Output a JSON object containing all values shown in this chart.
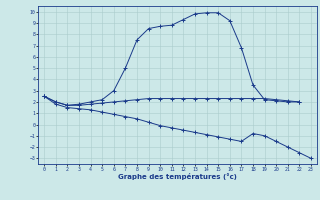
{
  "xlabel": "Graphe des températures (°c)",
  "x_ticks": [
    0,
    1,
    2,
    3,
    4,
    5,
    6,
    7,
    8,
    9,
    10,
    11,
    12,
    13,
    14,
    15,
    16,
    17,
    18,
    19,
    20,
    21,
    22,
    23
  ],
  "ylim": [
    -3.5,
    10.5
  ],
  "xlim": [
    -0.5,
    23.5
  ],
  "yticks": [
    -3,
    -2,
    -1,
    0,
    1,
    2,
    3,
    4,
    5,
    6,
    7,
    8,
    9,
    10
  ],
  "bg_color": "#cce8e8",
  "line_color": "#1a3a8a",
  "grid_color": "#aacccc",
  "line1_x": [
    0,
    1,
    2,
    3,
    4,
    5,
    6,
    7,
    8,
    9,
    10,
    11,
    12,
    13,
    14,
    15,
    16,
    17,
    18,
    19,
    20,
    21,
    22
  ],
  "line1_y": [
    2.5,
    2.0,
    1.7,
    1.8,
    2.0,
    2.2,
    3.0,
    5.0,
    7.5,
    8.5,
    8.7,
    8.8,
    9.3,
    9.8,
    9.9,
    9.9,
    9.2,
    6.8,
    3.5,
    2.2,
    2.1,
    2.0,
    2.0
  ],
  "line2_x": [
    0,
    1,
    2,
    3,
    4,
    5,
    6,
    7,
    8,
    9,
    10,
    11,
    12,
    13,
    14,
    15,
    16,
    17,
    18,
    19,
    20,
    21,
    22
  ],
  "line2_y": [
    2.5,
    2.0,
    1.7,
    1.7,
    1.8,
    1.9,
    2.0,
    2.1,
    2.2,
    2.3,
    2.3,
    2.3,
    2.3,
    2.3,
    2.3,
    2.3,
    2.3,
    2.3,
    2.3,
    2.3,
    2.2,
    2.1,
    2.0
  ],
  "line3_x": [
    0,
    1,
    2,
    3,
    4,
    5,
    6,
    7,
    8,
    9,
    10,
    11,
    12,
    13,
    14,
    15,
    16,
    17,
    18,
    19,
    20,
    21,
    22,
    23
  ],
  "line3_y": [
    2.5,
    1.8,
    1.5,
    1.4,
    1.3,
    1.1,
    0.9,
    0.7,
    0.5,
    0.2,
    -0.1,
    -0.3,
    -0.5,
    -0.7,
    -0.9,
    -1.1,
    -1.3,
    -1.5,
    -0.8,
    -1.0,
    -1.5,
    -2.0,
    -2.5,
    -3.0
  ]
}
